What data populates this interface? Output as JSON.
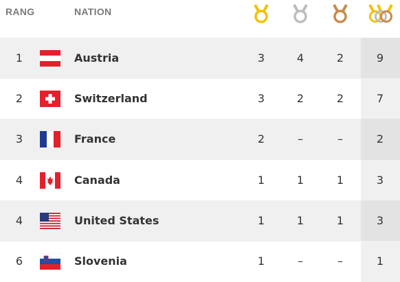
{
  "header": {
    "rank": "RANG",
    "nation": "NATION"
  },
  "rows": [
    {
      "rank": 1,
      "nation": "Austria",
      "gold": 3,
      "silver": 4,
      "bronze": 2,
      "total": 9
    },
    {
      "rank": 2,
      "nation": "Switzerland",
      "gold": 3,
      "silver": 2,
      "bronze": 2,
      "total": 7
    },
    {
      "rank": 3,
      "nation": "France",
      "gold": 2,
      "silver": "–",
      "bronze": "–",
      "total": 2
    },
    {
      "rank": 4,
      "nation": "Canada",
      "gold": 1,
      "silver": 1,
      "bronze": 1,
      "total": 3
    },
    {
      "rank": 4,
      "nation": "United States",
      "gold": 1,
      "silver": 1,
      "bronze": 1,
      "total": 3
    },
    {
      "rank": 6,
      "nation": "Slovenia",
      "gold": 1,
      "silver": "–",
      "bronze": "–",
      "total": 1
    }
  ]
}
